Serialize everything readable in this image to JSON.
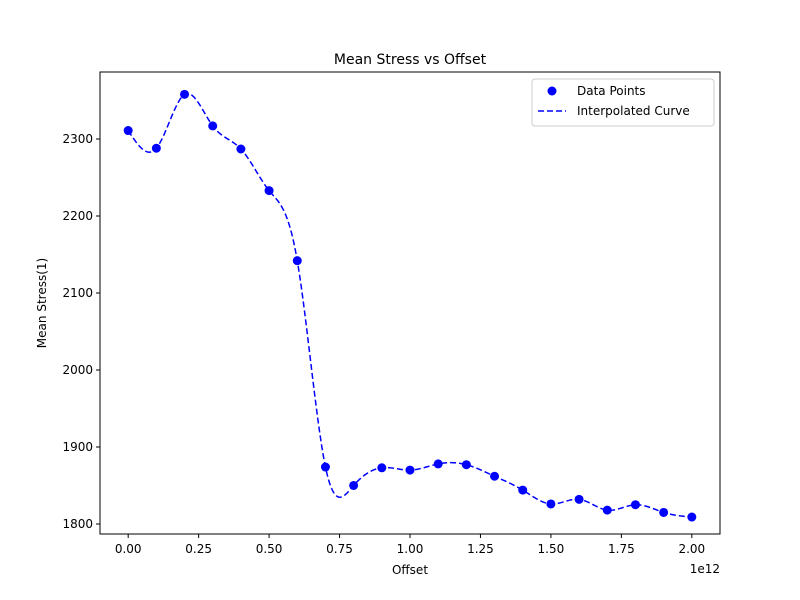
{
  "chart_data": {
    "type": "line",
    "title": "Mean Stress vs Offset",
    "xlabel": "Offset",
    "ylabel": "Mean Stress(1)",
    "x_offset_label": "1e12",
    "xlim": [
      -0.1,
      2.1
    ],
    "ylim": [
      1787,
      2387
    ],
    "xticks": [
      0.0,
      0.25,
      0.5,
      0.75,
      1.0,
      1.25,
      1.5,
      1.75,
      2.0
    ],
    "xtick_labels": [
      "0.00",
      "0.25",
      "0.50",
      "0.75",
      "1.00",
      "1.25",
      "1.50",
      "1.75",
      "2.00"
    ],
    "yticks": [
      1800,
      1900,
      2000,
      2100,
      2200,
      2300
    ],
    "ytick_labels": [
      "1800",
      "1900",
      "2000",
      "2100",
      "2200",
      "2300"
    ],
    "grid": false,
    "legend_position": "top-right",
    "series": [
      {
        "name": "Data Points",
        "style": "scatter",
        "color": "#0000ff",
        "x": [
          0.0,
          0.1,
          0.2,
          0.3,
          0.4,
          0.5,
          0.6,
          0.7,
          0.8,
          0.9,
          1.0,
          1.1,
          1.2,
          1.3,
          1.4,
          1.5,
          1.6,
          1.7,
          1.8,
          1.9,
          2.0
        ],
        "y": [
          2311,
          2288,
          2358,
          2317,
          2287,
          2233,
          2142,
          1874,
          1850,
          1873,
          1870,
          1878,
          1877,
          1862,
          1844,
          1826,
          1832,
          1818,
          1825,
          1815,
          1809
        ]
      },
      {
        "name": "Interpolated Curve",
        "style": "dashed-line",
        "color": "#0000ff",
        "interpolation": "cubic-spline"
      }
    ]
  }
}
